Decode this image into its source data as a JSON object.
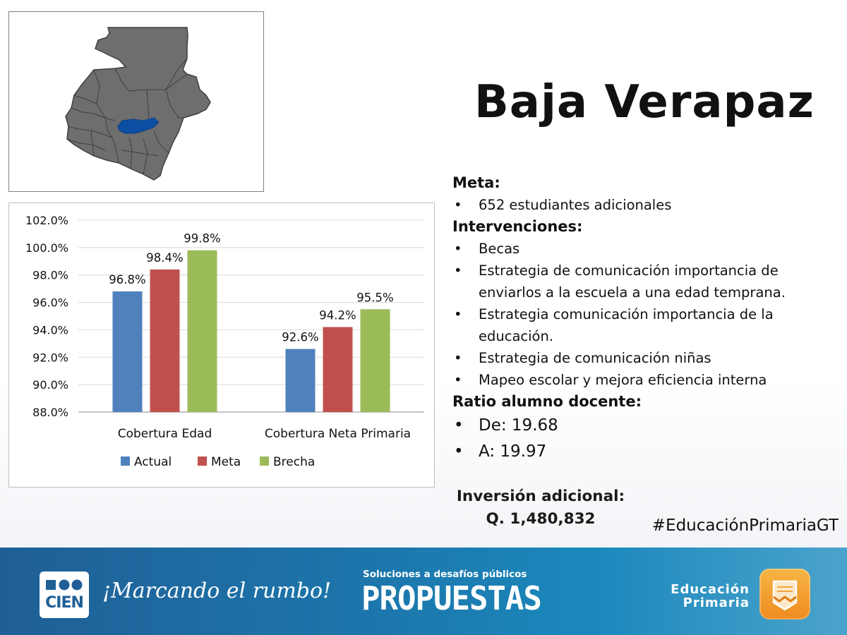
{
  "title": "Baja Verapaz",
  "map": {
    "highlight_color": "#0b4ea2",
    "base_color": "#6e6e6e",
    "border_color": "#3f3f3f"
  },
  "chart_data": {
    "type": "bar",
    "categories": [
      "Cobertura Edad",
      "Cobertura Neta Primaria"
    ],
    "series": [
      {
        "name": "Actual",
        "values": [
          96.8,
          92.6
        ],
        "labels": [
          "96.8%",
          "92.6%"
        ],
        "color": "#4f81bd"
      },
      {
        "name": "Meta",
        "values": [
          98.4,
          94.2
        ],
        "labels": [
          "98.4%",
          "94.2%"
        ],
        "color": "#c0504d"
      },
      {
        "name": "Brecha",
        "values": [
          99.8,
          95.5
        ],
        "labels": [
          "99.8%",
          "95.5%"
        ],
        "color": "#9bbb59"
      }
    ],
    "ylim": [
      88.0,
      102.0
    ],
    "yticks": [
      "88.0%",
      "90.0%",
      "92.0%",
      "94.0%",
      "96.0%",
      "98.0%",
      "100.0%",
      "102.0%"
    ],
    "grid": true,
    "legend_position": "bottom"
  },
  "info": {
    "meta_heading": "Meta:",
    "meta_items": [
      "652 estudiantes adicionales"
    ],
    "interv_heading": "Intervenciones:",
    "interv_items": [
      [
        "Becas"
      ],
      [
        "Estrategia de comunicación importancia de",
        "enviarlos a la escuela a una edad temprana."
      ],
      [
        "Estrategia comunicación importancia de la",
        "educación."
      ],
      [
        "Estrategia de comunicación niñas"
      ],
      [
        "Mapeo escolar y mejora eficiencia interna"
      ]
    ],
    "ratio_heading": "Ratio alumno docente:",
    "ratio_items": [
      "De: 19.68",
      "A: 19.97"
    ],
    "bullet": "•"
  },
  "investment": {
    "label": "Inversión adicional:",
    "amount": "Q. 1,480,832"
  },
  "hashtag": "#EducaciónPrimariaGT",
  "footer": {
    "cien_logo_text": "CIEN",
    "slogan": "¡Marcando el rumbo!",
    "propuestas_tagline": "Soluciones a desafíos públicos",
    "propuestas": "PROPUESTAS",
    "educacion_line1": "Educación",
    "educacion_line2": "Primaria",
    "icons": [
      "cien-logo-icon",
      "educacion-primaria-icon"
    ]
  }
}
